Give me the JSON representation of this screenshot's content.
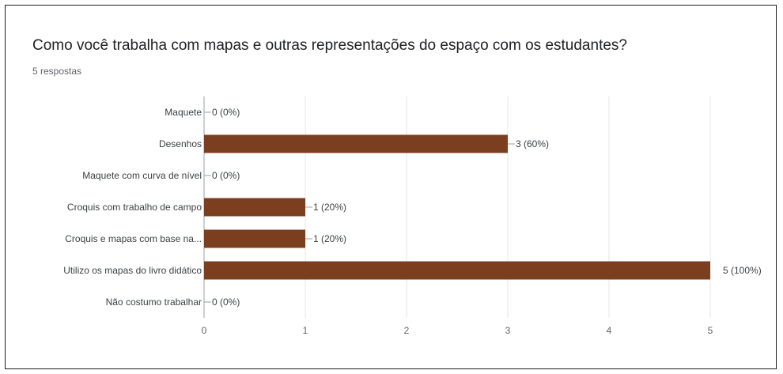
{
  "card": {
    "title": "Como você trabalha com mapas e outras representações do espaço com os estudantes?",
    "subtitle": "5 respostas"
  },
  "chart_data": {
    "type": "bar",
    "orientation": "horizontal",
    "categories": [
      "Maquete",
      "Desenhos",
      "Maquete com curva de nível",
      "Croquis com trabalho de campo",
      "Croquis e mapas com base na...",
      "Utilizo os mapas do livro didático",
      "Não costumo trabalhar"
    ],
    "values": [
      0,
      3,
      0,
      1,
      1,
      5,
      0
    ],
    "data_labels": [
      "0 (0%)",
      "3 (60%)",
      "0 (0%)",
      "1 (20%)",
      "1 (20%)",
      "5 (100%)",
      "0 (0%)"
    ],
    "xlim": [
      0,
      5
    ],
    "xticks": [
      0,
      1,
      2,
      3,
      4,
      5
    ],
    "bar_color": "#7b3f1f",
    "grid": true,
    "legend": "none"
  }
}
